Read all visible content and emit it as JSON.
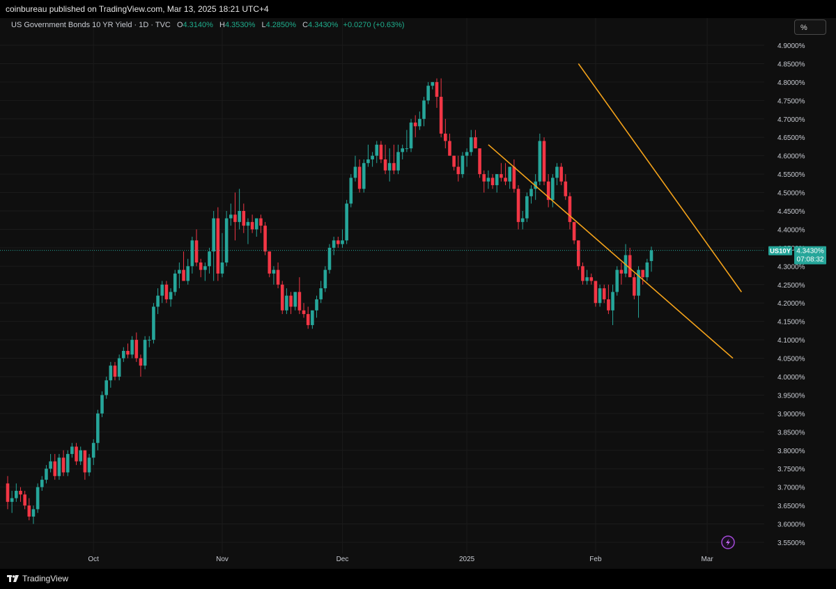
{
  "header": {
    "published_text": "coinbureau published on TradingView.com, Mar 13, 2025 18:21 UTC+4"
  },
  "symbol_info": {
    "title": "US Government Bonds 10 YR Yield · 1D · TVC",
    "open_label": "O",
    "open_value": "4.3140%",
    "high_label": "H",
    "high_value": "4.3530%",
    "low_label": "L",
    "low_value": "4.2850%",
    "close_label": "C",
    "close_value": "4.3430%",
    "change": "+0.0270 (+0.63%)"
  },
  "controls": {
    "percent_button": "%"
  },
  "price_tag": {
    "symbol": "US10Y",
    "value": "4.3430%",
    "countdown": "07:08:32"
  },
  "footer": {
    "brand": "TradingView"
  },
  "colors": {
    "up": "#26a69a",
    "down": "#f23645",
    "channel": "#f5a31a",
    "background": "#0f0f0f",
    "grid": "#1b1b1b"
  },
  "icons": {
    "lightning": "lightning-icon"
  },
  "chart_data": {
    "type": "candlestick",
    "xlabel": "",
    "ylabel": "",
    "y_unit": "%",
    "ylim": [
      3.53,
      4.93
    ],
    "y_ticks": [
      "4.9000%",
      "4.8500%",
      "4.8000%",
      "4.7500%",
      "4.7000%",
      "4.6500%",
      "4.6000%",
      "4.5500%",
      "4.5000%",
      "4.4500%",
      "4.4000%",
      "4.3500%",
      "4.3000%",
      "4.2500%",
      "4.2000%",
      "4.1500%",
      "4.1000%",
      "4.0500%",
      "4.0000%",
      "3.9500%",
      "3.9000%",
      "3.8500%",
      "3.8000%",
      "3.7500%",
      "3.7000%",
      "3.6500%",
      "3.6000%",
      "3.5500%"
    ],
    "x_ticks": [
      "Oct",
      "Nov",
      "Dec",
      "2025",
      "Feb",
      "Mar"
    ],
    "x_tick_candle_index": [
      20,
      50,
      78,
      107,
      137,
      163
    ],
    "last_price": 4.343,
    "channel_lines": [
      {
        "from": [
          112,
          4.63
        ],
        "to": [
          169,
          4.05
        ]
      },
      {
        "from": [
          133,
          4.85
        ],
        "to": [
          171,
          4.23
        ]
      }
    ],
    "candles": [
      [
        3.71,
        3.73,
        3.64,
        3.66
      ],
      [
        3.66,
        3.69,
        3.63,
        3.67
      ],
      [
        3.67,
        3.71,
        3.66,
        3.69
      ],
      [
        3.69,
        3.7,
        3.66,
        3.68
      ],
      [
        3.68,
        3.69,
        3.64,
        3.65
      ],
      [
        3.65,
        3.67,
        3.61,
        3.62
      ],
      [
        3.62,
        3.65,
        3.6,
        3.64
      ],
      [
        3.64,
        3.71,
        3.63,
        3.7
      ],
      [
        3.7,
        3.73,
        3.69,
        3.72
      ],
      [
        3.72,
        3.76,
        3.71,
        3.75
      ],
      [
        3.75,
        3.79,
        3.74,
        3.77
      ],
      [
        3.77,
        3.79,
        3.72,
        3.73
      ],
      [
        3.73,
        3.79,
        3.72,
        3.78
      ],
      [
        3.78,
        3.8,
        3.73,
        3.74
      ],
      [
        3.74,
        3.8,
        3.73,
        3.79
      ],
      [
        3.79,
        3.82,
        3.78,
        3.81
      ],
      [
        3.81,
        3.82,
        3.76,
        3.77
      ],
      [
        3.77,
        3.81,
        3.76,
        3.8
      ],
      [
        3.8,
        3.8,
        3.72,
        3.74
      ],
      [
        3.74,
        3.79,
        3.73,
        3.78
      ],
      [
        3.78,
        3.83,
        3.76,
        3.82
      ],
      [
        3.82,
        3.91,
        3.8,
        3.9
      ],
      [
        3.9,
        3.96,
        3.89,
        3.95
      ],
      [
        3.95,
        4.0,
        3.94,
        3.99
      ],
      [
        3.99,
        4.04,
        3.97,
        4.03
      ],
      [
        4.03,
        4.04,
        3.99,
        4.0
      ],
      [
        4.0,
        4.06,
        3.99,
        4.05
      ],
      [
        4.05,
        4.08,
        4.04,
        4.07
      ],
      [
        4.07,
        4.09,
        4.05,
        4.06
      ],
      [
        4.06,
        4.11,
        4.05,
        4.1
      ],
      [
        4.1,
        4.12,
        4.04,
        4.05
      ],
      [
        4.05,
        4.06,
        4.0,
        4.03
      ],
      [
        4.03,
        4.11,
        4.02,
        4.1
      ],
      [
        4.1,
        4.11,
        4.08,
        4.1
      ],
      [
        4.1,
        4.2,
        4.09,
        4.19
      ],
      [
        4.19,
        4.24,
        4.17,
        4.22
      ],
      [
        4.22,
        4.26,
        4.2,
        4.25
      ],
      [
        4.25,
        4.26,
        4.2,
        4.21
      ],
      [
        4.21,
        4.24,
        4.19,
        4.23
      ],
      [
        4.23,
        4.29,
        4.22,
        4.28
      ],
      [
        4.28,
        4.31,
        4.24,
        4.29
      ],
      [
        4.29,
        4.34,
        4.27,
        4.26
      ],
      [
        4.26,
        4.32,
        4.25,
        4.3
      ],
      [
        4.3,
        4.38,
        4.28,
        4.37
      ],
      [
        4.37,
        4.4,
        4.3,
        4.31
      ],
      [
        4.31,
        4.32,
        4.27,
        4.29
      ],
      [
        4.29,
        4.31,
        4.26,
        4.3
      ],
      [
        4.3,
        4.35,
        4.28,
        4.34
      ],
      [
        4.34,
        4.45,
        4.26,
        4.43
      ],
      [
        4.43,
        4.46,
        4.26,
        4.28
      ],
      [
        4.28,
        4.39,
        4.27,
        4.31
      ],
      [
        4.31,
        4.45,
        4.3,
        4.43
      ],
      [
        4.43,
        4.47,
        4.41,
        4.44
      ],
      [
        4.44,
        4.5,
        4.37,
        4.42
      ],
      [
        4.42,
        4.51,
        4.4,
        4.45
      ],
      [
        4.45,
        4.47,
        4.39,
        4.41
      ],
      [
        4.41,
        4.43,
        4.36,
        4.42
      ],
      [
        4.42,
        4.44,
        4.39,
        4.4
      ],
      [
        4.4,
        4.43,
        4.38,
        4.43
      ],
      [
        4.43,
        4.44,
        4.39,
        4.41
      ],
      [
        4.41,
        4.42,
        4.33,
        4.34
      ],
      [
        4.34,
        4.34,
        4.27,
        4.28
      ],
      [
        4.28,
        4.3,
        4.25,
        4.29
      ],
      [
        4.29,
        4.31,
        4.24,
        4.25
      ],
      [
        4.25,
        4.26,
        4.17,
        4.18
      ],
      [
        4.18,
        4.24,
        4.17,
        4.22
      ],
      [
        4.22,
        4.23,
        4.17,
        4.19
      ],
      [
        4.19,
        4.23,
        4.18,
        4.23
      ],
      [
        4.23,
        4.27,
        4.17,
        4.18
      ],
      [
        4.18,
        4.2,
        4.16,
        4.17
      ],
      [
        4.17,
        4.19,
        4.13,
        4.14
      ],
      [
        4.14,
        4.18,
        4.13,
        4.18
      ],
      [
        4.18,
        4.22,
        4.16,
        4.21
      ],
      [
        4.21,
        4.26,
        4.2,
        4.24
      ],
      [
        4.24,
        4.3,
        4.23,
        4.29
      ],
      [
        4.29,
        4.36,
        4.28,
        4.35
      ],
      [
        4.35,
        4.38,
        4.33,
        4.37
      ],
      [
        4.37,
        4.38,
        4.35,
        4.36
      ],
      [
        4.36,
        4.4,
        4.35,
        4.37
      ],
      [
        4.37,
        4.48,
        4.36,
        4.47
      ],
      [
        4.47,
        4.55,
        4.46,
        4.54
      ],
      [
        4.54,
        4.6,
        4.53,
        4.57
      ],
      [
        4.57,
        4.59,
        4.5,
        4.51
      ],
      [
        4.51,
        4.59,
        4.5,
        4.58
      ],
      [
        4.58,
        4.63,
        4.57,
        4.59
      ],
      [
        4.59,
        4.61,
        4.57,
        4.6
      ],
      [
        4.6,
        4.64,
        4.58,
        4.63
      ],
      [
        4.63,
        4.64,
        4.58,
        4.59
      ],
      [
        4.59,
        4.63,
        4.55,
        4.56
      ],
      [
        4.56,
        4.62,
        4.53,
        4.58
      ],
      [
        4.58,
        4.63,
        4.55,
        4.56
      ],
      [
        4.56,
        4.63,
        4.55,
        4.61
      ],
      [
        4.61,
        4.63,
        4.59,
        4.62
      ],
      [
        4.62,
        4.67,
        4.61,
        4.62
      ],
      [
        4.62,
        4.7,
        4.61,
        4.69
      ],
      [
        4.69,
        4.71,
        4.65,
        4.68
      ],
      [
        4.68,
        4.72,
        4.67,
        4.7
      ],
      [
        4.7,
        4.76,
        4.68,
        4.75
      ],
      [
        4.75,
        4.8,
        4.74,
        4.79
      ],
      [
        4.79,
        4.8,
        4.78,
        4.8
      ],
      [
        4.8,
        4.81,
        4.73,
        4.76
      ],
      [
        4.76,
        4.81,
        4.65,
        4.66
      ],
      [
        4.66,
        4.7,
        4.62,
        4.64
      ],
      [
        4.64,
        4.66,
        4.6,
        4.6
      ],
      [
        4.6,
        4.6,
        4.56,
        4.57
      ],
      [
        4.57,
        4.6,
        4.53,
        4.55
      ],
      [
        4.55,
        4.61,
        4.54,
        4.6
      ],
      [
        4.6,
        4.62,
        4.57,
        4.61
      ],
      [
        4.61,
        4.67,
        4.6,
        4.65
      ],
      [
        4.65,
        4.67,
        4.62,
        4.62
      ],
      [
        4.62,
        4.62,
        4.54,
        4.55
      ],
      [
        4.55,
        4.56,
        4.5,
        4.53
      ],
      [
        4.53,
        4.56,
        4.51,
        4.54
      ],
      [
        4.54,
        4.55,
        4.51,
        4.52
      ],
      [
        4.52,
        4.55,
        4.5,
        4.55
      ],
      [
        4.55,
        4.58,
        4.53,
        4.54
      ],
      [
        4.54,
        4.58,
        4.52,
        4.53
      ],
      [
        4.53,
        4.57,
        4.51,
        4.57
      ],
      [
        4.57,
        4.59,
        4.5,
        4.51
      ],
      [
        4.51,
        4.52,
        4.4,
        4.42
      ],
      [
        4.42,
        4.45,
        4.4,
        4.43
      ],
      [
        4.43,
        4.5,
        4.42,
        4.49
      ],
      [
        4.49,
        4.52,
        4.47,
        4.51
      ],
      [
        4.51,
        4.55,
        4.48,
        4.53
      ],
      [
        4.53,
        4.66,
        4.52,
        4.64
      ],
      [
        4.64,
        4.65,
        4.52,
        4.53
      ],
      [
        4.53,
        4.55,
        4.46,
        4.48
      ],
      [
        4.48,
        4.55,
        4.46,
        4.54
      ],
      [
        4.54,
        4.58,
        4.52,
        4.57
      ],
      [
        4.57,
        4.58,
        4.52,
        4.53
      ],
      [
        4.53,
        4.55,
        4.48,
        4.49
      ],
      [
        4.49,
        4.5,
        4.4,
        4.42
      ],
      [
        4.42,
        4.42,
        4.36,
        4.37
      ],
      [
        4.37,
        4.37,
        4.29,
        4.3
      ],
      [
        4.3,
        4.31,
        4.25,
        4.26
      ],
      [
        4.26,
        4.29,
        4.25,
        4.27
      ],
      [
        4.27,
        4.28,
        4.25,
        4.26
      ],
      [
        4.26,
        4.26,
        4.19,
        4.2
      ],
      [
        4.2,
        4.25,
        4.19,
        4.24
      ],
      [
        4.24,
        4.25,
        4.2,
        4.21
      ],
      [
        4.21,
        4.25,
        4.17,
        4.18
      ],
      [
        4.18,
        4.25,
        4.14,
        4.23
      ],
      [
        4.23,
        4.3,
        4.22,
        4.29
      ],
      [
        4.29,
        4.31,
        4.25,
        4.28
      ],
      [
        4.28,
        4.36,
        4.27,
        4.33
      ],
      [
        4.33,
        4.35,
        4.28,
        4.27
      ],
      [
        4.27,
        4.28,
        4.21,
        4.22
      ],
      [
        4.22,
        4.3,
        4.16,
        4.29
      ],
      [
        4.29,
        4.29,
        4.25,
        4.27
      ],
      [
        4.27,
        4.32,
        4.26,
        4.31
      ],
      [
        4.314,
        4.353,
        4.285,
        4.343
      ]
    ]
  }
}
